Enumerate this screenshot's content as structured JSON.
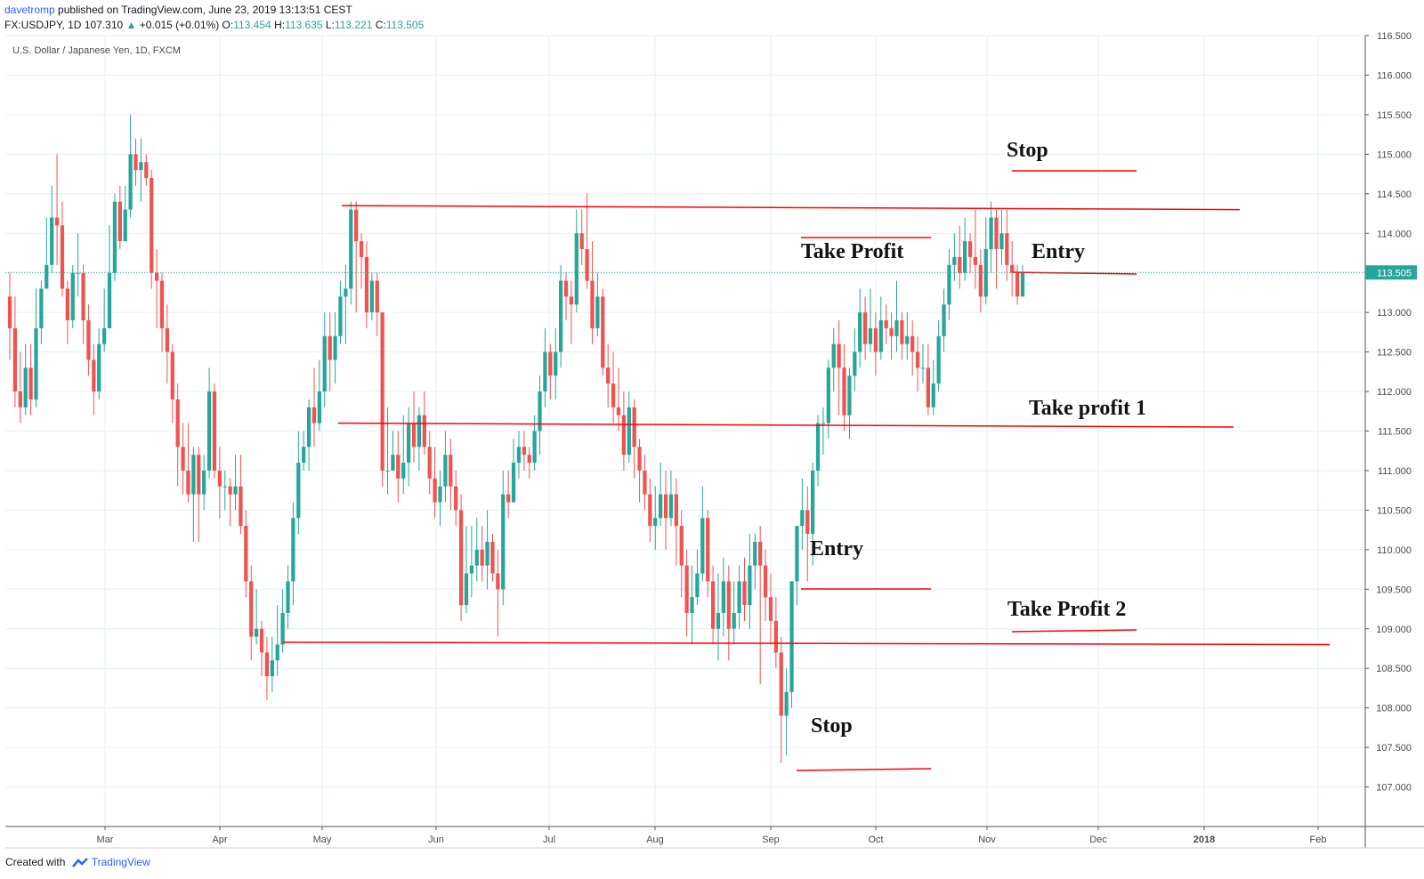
{
  "header": {
    "author": "davetromp",
    "published_text": "published on TradingView.com, June 23, 2019 13:13:51 CEST",
    "symbol_line": "FX:USDJPY, 1D",
    "last_price": "107.310",
    "change": "+0.015 (+0.01%)",
    "open_label": "O:",
    "open": "113.454",
    "high_label": "H:",
    "high": "113.635",
    "low_label": "L:",
    "low": "113.221",
    "close_label": "C:",
    "close": "113.505"
  },
  "footer": {
    "created_with": "Created with",
    "brand": "TradingView"
  },
  "colors": {
    "bull": "#26a69a",
    "bear": "#ef5350",
    "line": "#ff0000",
    "price_tag": "#26a69a",
    "grid": "#e6f0f6",
    "border": "#555555"
  },
  "chart_data": {
    "type": "candlestick",
    "title": "U.S. Dollar / Japanese Yen, 1D, FXCM",
    "ylim": [
      106.5,
      116.5
    ],
    "y_ticks": [
      "116.500",
      "116.000",
      "115.500",
      "115.000",
      "114.500",
      "114.000",
      "113.500",
      "113.000",
      "112.500",
      "112.000",
      "111.500",
      "111.000",
      "110.500",
      "110.000",
      "109.500",
      "109.000",
      "108.500",
      "108.000",
      "107.500",
      "107.000"
    ],
    "x_ticks": [
      "Mar",
      "Apr",
      "May",
      "Jun",
      "Jul",
      "Aug",
      "Sep",
      "Oct",
      "Nov",
      "Dec",
      "2018",
      "Feb"
    ],
    "current_price_label": "113.505",
    "annotations": [
      "Stop",
      "Take Profit",
      "Entry",
      "Take profit 1",
      "Entry",
      "Take Profit 2",
      "Stop"
    ],
    "horizontal_lines": [
      {
        "name": "resistance",
        "from": 114.35,
        "to": 114.3
      },
      {
        "name": "middle",
        "from": 111.6,
        "to": 111.55
      },
      {
        "name": "support",
        "from": 108.83,
        "to": 108.8
      }
    ],
    "candles": [
      [
        113.2,
        112.8,
        113.5,
        112.4
      ],
      [
        112.8,
        112.0,
        113.2,
        111.8
      ],
      [
        112.0,
        111.8,
        112.5,
        111.6
      ],
      [
        111.8,
        112.3,
        112.6,
        111.7
      ],
      [
        112.3,
        111.9,
        112.6,
        111.7
      ],
      [
        111.9,
        112.8,
        113.3,
        111.8
      ],
      [
        112.8,
        113.3,
        113.4,
        112.6
      ],
      [
        113.3,
        113.6,
        114.2,
        113.3
      ],
      [
        113.6,
        114.2,
        114.6,
        113.5
      ],
      [
        114.2,
        114.1,
        115.0,
        113.6
      ],
      [
        114.1,
        113.3,
        114.4,
        113.2
      ],
      [
        113.3,
        112.9,
        113.4,
        112.6
      ],
      [
        112.9,
        113.5,
        113.6,
        112.8
      ],
      [
        113.5,
        113.5,
        114.0,
        113.2
      ],
      [
        113.5,
        112.9,
        113.6,
        112.6
      ],
      [
        112.9,
        112.4,
        113.1,
        112.2
      ],
      [
        112.4,
        112.0,
        112.6,
        111.7
      ],
      [
        112.0,
        112.6,
        112.8,
        111.9
      ],
      [
        112.6,
        112.8,
        113.3,
        112.5
      ],
      [
        112.8,
        113.5,
        114.1,
        112.8
      ],
      [
        113.5,
        114.4,
        114.5,
        113.4
      ],
      [
        114.4,
        113.9,
        114.6,
        113.8
      ],
      [
        113.9,
        114.3,
        114.6,
        113.9
      ],
      [
        114.3,
        115.0,
        115.5,
        114.2
      ],
      [
        115.0,
        114.8,
        115.2,
        114.6
      ],
      [
        114.8,
        114.9,
        115.2,
        114.4
      ],
      [
        114.9,
        114.7,
        115.0,
        114.6
      ],
      [
        114.7,
        113.5,
        114.8,
        113.3
      ],
      [
        113.5,
        113.4,
        113.8,
        112.8
      ],
      [
        113.4,
        112.8,
        113.5,
        112.5
      ],
      [
        112.8,
        112.5,
        113.1,
        112.1
      ],
      [
        112.5,
        111.9,
        112.6,
        111.6
      ],
      [
        111.9,
        111.3,
        112.1,
        110.8
      ],
      [
        111.3,
        111.0,
        111.6,
        110.7
      ],
      [
        111.0,
        110.7,
        111.6,
        110.6
      ],
      [
        110.7,
        111.2,
        111.3,
        110.1
      ],
      [
        111.2,
        110.7,
        111.3,
        110.1
      ],
      [
        110.7,
        111.0,
        111.2,
        110.5
      ],
      [
        111.0,
        112.0,
        112.3,
        110.9
      ],
      [
        112.0,
        111.0,
        112.1,
        110.9
      ],
      [
        111.0,
        110.8,
        111.3,
        110.4
      ],
      [
        110.8,
        110.8,
        111.0,
        110.5
      ],
      [
        110.8,
        110.7,
        110.9,
        110.3
      ],
      [
        110.7,
        110.8,
        111.2,
        110.5
      ],
      [
        110.8,
        110.3,
        111.2,
        110.2
      ],
      [
        110.3,
        109.6,
        110.5,
        109.4
      ],
      [
        109.6,
        108.9,
        109.8,
        108.6
      ],
      [
        108.9,
        109.0,
        109.5,
        108.8
      ],
      [
        109.0,
        108.7,
        109.1,
        108.4
      ],
      [
        108.7,
        108.4,
        108.9,
        108.1
      ],
      [
        108.4,
        108.6,
        108.9,
        108.2
      ],
      [
        108.6,
        108.8,
        109.3,
        108.4
      ],
      [
        108.8,
        109.2,
        109.5,
        108.7
      ],
      [
        109.2,
        109.6,
        109.8,
        109.0
      ],
      [
        109.6,
        110.4,
        110.6,
        109.3
      ],
      [
        110.4,
        111.1,
        111.5,
        110.2
      ],
      [
        111.1,
        111.3,
        111.5,
        111.0
      ],
      [
        111.3,
        111.8,
        111.9,
        111.0
      ],
      [
        111.8,
        111.6,
        112.3,
        111.3
      ],
      [
        111.6,
        112.0,
        112.4,
        111.5
      ],
      [
        112.0,
        112.7,
        113.0,
        111.8
      ],
      [
        112.7,
        112.4,
        113.0,
        112.0
      ],
      [
        112.4,
        112.7,
        113.0,
        112.1
      ],
      [
        112.7,
        113.2,
        113.4,
        112.6
      ],
      [
        113.2,
        113.3,
        113.6,
        112.6
      ],
      [
        113.3,
        114.3,
        114.4,
        113.1
      ],
      [
        114.3,
        113.9,
        114.4,
        113.0
      ],
      [
        113.9,
        113.7,
        114.0,
        113.3
      ],
      [
        113.7,
        113.0,
        113.9,
        112.8
      ],
      [
        113.0,
        113.4,
        113.5,
        112.9
      ],
      [
        113.4,
        113.0,
        113.5,
        112.7
      ],
      [
        113.0,
        111.0,
        113.0,
        110.8
      ],
      [
        111.0,
        111.0,
        111.8,
        110.7
      ],
      [
        111.0,
        111.2,
        111.5,
        111.0
      ],
      [
        111.2,
        110.9,
        111.5,
        110.6
      ],
      [
        110.9,
        111.1,
        111.7,
        110.7
      ],
      [
        111.1,
        111.6,
        111.8,
        110.8
      ],
      [
        111.6,
        111.3,
        112.0,
        111.1
      ],
      [
        111.3,
        111.7,
        111.8,
        111.0
      ],
      [
        111.7,
        111.3,
        112.0,
        111.2
      ],
      [
        111.3,
        110.9,
        111.5,
        110.7
      ],
      [
        110.9,
        110.6,
        111.3,
        110.4
      ],
      [
        110.6,
        110.8,
        111.0,
        110.3
      ],
      [
        110.8,
        111.2,
        111.5,
        110.6
      ],
      [
        111.2,
        110.8,
        111.4,
        110.5
      ],
      [
        110.8,
        110.5,
        111.0,
        110.3
      ],
      [
        110.5,
        109.3,
        110.7,
        109.1
      ],
      [
        109.3,
        109.7,
        110.3,
        109.2
      ],
      [
        109.7,
        109.8,
        110.3,
        109.4
      ],
      [
        109.8,
        110.0,
        110.4,
        109.6
      ],
      [
        110.0,
        109.8,
        110.3,
        109.6
      ],
      [
        109.8,
        110.1,
        110.5,
        109.5
      ],
      [
        110.1,
        109.7,
        110.2,
        109.6
      ],
      [
        109.7,
        109.5,
        110.0,
        108.9
      ],
      [
        109.5,
        110.7,
        111.0,
        109.3
      ],
      [
        110.7,
        110.6,
        111.0,
        110.4
      ],
      [
        110.6,
        111.1,
        111.4,
        110.6
      ],
      [
        111.1,
        111.3,
        111.5,
        110.9
      ],
      [
        111.3,
        111.2,
        111.5,
        111.0
      ],
      [
        111.2,
        111.1,
        111.3,
        110.9
      ],
      [
        111.1,
        111.5,
        111.7,
        111.0
      ],
      [
        111.5,
        112.0,
        112.2,
        111.2
      ],
      [
        112.0,
        112.5,
        112.8,
        111.8
      ],
      [
        112.5,
        112.2,
        112.6,
        111.9
      ],
      [
        112.2,
        112.5,
        112.8,
        111.9
      ],
      [
        112.5,
        113.4,
        113.6,
        112.3
      ],
      [
        113.4,
        113.2,
        113.5,
        112.9
      ],
      [
        113.2,
        113.1,
        113.4,
        112.6
      ],
      [
        113.1,
        114.0,
        114.3,
        113.0
      ],
      [
        114.0,
        113.8,
        114.3,
        113.6
      ],
      [
        113.8,
        113.4,
        114.5,
        113.3
      ],
      [
        113.4,
        112.8,
        113.9,
        112.6
      ],
      [
        112.8,
        113.2,
        113.5,
        112.7
      ],
      [
        113.2,
        112.3,
        113.3,
        112.2
      ],
      [
        112.3,
        112.1,
        112.6,
        111.8
      ],
      [
        112.1,
        111.8,
        112.5,
        111.6
      ],
      [
        111.8,
        111.7,
        112.3,
        111.5
      ],
      [
        111.7,
        111.2,
        112.0,
        111.0
      ],
      [
        111.2,
        111.8,
        112.0,
        111.1
      ],
      [
        111.8,
        111.3,
        111.9,
        110.9
      ],
      [
        111.3,
        111.0,
        111.4,
        110.6
      ],
      [
        111.0,
        110.7,
        111.2,
        110.5
      ],
      [
        110.7,
        110.3,
        110.9,
        110.1
      ],
      [
        110.3,
        110.4,
        110.8,
        110.0
      ],
      [
        110.4,
        110.7,
        111.1,
        110.3
      ],
      [
        110.7,
        110.4,
        111.0,
        110.0
      ],
      [
        110.4,
        110.7,
        111.0,
        110.3
      ],
      [
        110.7,
        110.3,
        110.9,
        109.8
      ],
      [
        110.3,
        109.8,
        110.5,
        109.4
      ],
      [
        109.8,
        109.2,
        110.0,
        108.9
      ],
      [
        109.2,
        109.4,
        109.8,
        108.8
      ],
      [
        109.4,
        109.7,
        110.0,
        109.3
      ],
      [
        109.7,
        110.4,
        110.8,
        109.6
      ],
      [
        110.4,
        109.6,
        110.5,
        109.4
      ],
      [
        109.6,
        109.0,
        109.8,
        108.8
      ],
      [
        109.0,
        109.2,
        109.7,
        108.6
      ],
      [
        109.2,
        109.6,
        109.9,
        108.9
      ],
      [
        109.6,
        109.0,
        109.8,
        108.6
      ],
      [
        109.0,
        109.2,
        109.6,
        108.8
      ],
      [
        109.2,
        109.6,
        109.8,
        109.0
      ],
      [
        109.6,
        109.3,
        109.9,
        109.1
      ],
      [
        109.3,
        109.8,
        110.2,
        109.0
      ],
      [
        109.8,
        110.1,
        110.2,
        109.5
      ],
      [
        110.1,
        109.8,
        110.3,
        108.3
      ],
      [
        109.8,
        109.4,
        110.0,
        109.1
      ],
      [
        109.4,
        109.1,
        109.7,
        108.8
      ],
      [
        109.1,
        108.7,
        109.4,
        108.5
      ],
      [
        108.7,
        107.9,
        108.9,
        107.3
      ],
      [
        107.9,
        108.2,
        108.5,
        107.4
      ],
      [
        108.2,
        109.6,
        109.6,
        108.0
      ],
      [
        109.6,
        110.3,
        110.3,
        109.3
      ],
      [
        110.3,
        110.5,
        110.9,
        110.0
      ],
      [
        110.5,
        110.2,
        110.8,
        109.6
      ],
      [
        110.2,
        111.0,
        111.1,
        109.8
      ],
      [
        111.0,
        111.6,
        111.7,
        110.8
      ],
      [
        111.6,
        111.6,
        111.8,
        111.2
      ],
      [
        111.6,
        112.3,
        112.4,
        111.4
      ],
      [
        112.3,
        112.6,
        112.8,
        112.0
      ],
      [
        112.6,
        112.3,
        112.9,
        111.7
      ],
      [
        112.3,
        111.7,
        112.6,
        111.5
      ],
      [
        111.7,
        112.2,
        112.3,
        111.4
      ],
      [
        112.2,
        112.5,
        112.8,
        112.0
      ],
      [
        112.5,
        113.0,
        113.3,
        112.3
      ],
      [
        113.0,
        112.6,
        113.2,
        112.4
      ],
      [
        112.6,
        112.8,
        113.3,
        112.5
      ],
      [
        112.8,
        112.5,
        113.0,
        112.2
      ],
      [
        112.5,
        112.9,
        113.2,
        112.4
      ],
      [
        112.9,
        112.8,
        113.1,
        112.6
      ],
      [
        112.8,
        112.7,
        113.0,
        112.4
      ],
      [
        112.7,
        112.9,
        113.4,
        112.5
      ],
      [
        112.9,
        112.6,
        113.0,
        112.4
      ],
      [
        112.6,
        112.7,
        113.0,
        112.4
      ],
      [
        112.7,
        112.5,
        112.9,
        112.2
      ],
      [
        112.5,
        112.3,
        112.7,
        112.0
      ],
      [
        112.3,
        112.3,
        112.6,
        112.1
      ],
      [
        112.3,
        111.8,
        112.6,
        111.7
      ],
      [
        111.8,
        112.1,
        112.4,
        111.7
      ],
      [
        112.1,
        112.7,
        112.9,
        112.0
      ],
      [
        112.7,
        113.1,
        113.3,
        112.5
      ],
      [
        113.1,
        113.6,
        113.8,
        112.9
      ],
      [
        113.6,
        113.7,
        114.0,
        113.4
      ],
      [
        113.7,
        113.5,
        114.1,
        113.3
      ],
      [
        113.5,
        113.9,
        114.2,
        113.4
      ],
      [
        113.9,
        113.7,
        114.0,
        113.5
      ],
      [
        113.7,
        113.6,
        114.3,
        113.3
      ],
      [
        113.6,
        113.2,
        113.8,
        113.0
      ],
      [
        113.2,
        113.8,
        114.2,
        113.1
      ],
      [
        113.8,
        114.2,
        114.4,
        113.5
      ],
      [
        114.2,
        113.8,
        114.3,
        113.3
      ],
      [
        113.8,
        114.0,
        114.3,
        113.6
      ],
      [
        114.0,
        113.6,
        114.3,
        113.4
      ],
      [
        113.6,
        113.5,
        113.9,
        113.2
      ],
      [
        113.5,
        113.2,
        113.6,
        113.1
      ],
      [
        113.2,
        113.5,
        113.6,
        113.2
      ]
    ]
  }
}
